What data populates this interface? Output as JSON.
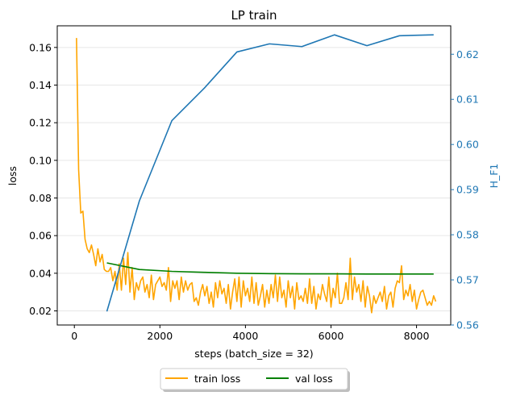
{
  "chart_data": {
    "type": "line",
    "title": "LP train",
    "xlabel": "steps (batch_size = 32)",
    "ylabel_left": "loss",
    "ylabel_right": "H_F1",
    "xlim": [
      -400,
      8800
    ],
    "ylim_left": [
      0.0125,
      0.1715
    ],
    "ylim_right": [
      0.56,
      0.6263
    ],
    "xticks": [
      0,
      2000,
      4000,
      6000,
      8000
    ],
    "yticks_left": [
      0.02,
      0.04,
      0.06,
      0.08,
      0.1,
      0.12,
      0.14,
      0.16
    ],
    "yticks_right": [
      0.56,
      0.57,
      0.58,
      0.59,
      0.6,
      0.61,
      0.62
    ],
    "grid": "horizontal light",
    "legend_placement": "below-center",
    "colors": {
      "train_loss": "#ffa500",
      "val_loss": "#008000",
      "h_f1": "#1f77b4",
      "right_axis": "#1f77b4"
    },
    "legend": [
      {
        "label": "train loss",
        "color": "#ffa500"
      },
      {
        "label": "val loss",
        "color": "#008000"
      }
    ],
    "series": [
      {
        "name": "train loss",
        "axis": "left",
        "color": "#ffa500",
        "x": [
          50,
          100,
          150,
          200,
          250,
          300,
          350,
          400,
          450,
          500,
          550,
          600,
          650,
          700,
          750,
          800,
          850,
          900,
          950,
          1000,
          1050,
          1100,
          1150,
          1200,
          1250,
          1300,
          1350,
          1400,
          1450,
          1500,
          1550,
          1600,
          1650,
          1700,
          1750,
          1800,
          1850,
          1900,
          1950,
          2000,
          2050,
          2100,
          2150,
          2200,
          2250,
          2300,
          2350,
          2400,
          2450,
          2500,
          2550,
          2600,
          2650,
          2700,
          2750,
          2800,
          2850,
          2900,
          2950,
          3000,
          3050,
          3100,
          3150,
          3200,
          3250,
          3300,
          3350,
          3400,
          3450,
          3500,
          3550,
          3600,
          3650,
          3700,
          3750,
          3800,
          3850,
          3900,
          3950,
          4000,
          4050,
          4100,
          4150,
          4200,
          4250,
          4300,
          4350,
          4400,
          4450,
          4500,
          4550,
          4600,
          4650,
          4700,
          4750,
          4800,
          4850,
          4900,
          4950,
          5000,
          5050,
          5100,
          5150,
          5200,
          5250,
          5300,
          5350,
          5400,
          5450,
          5500,
          5550,
          5600,
          5650,
          5700,
          5750,
          5800,
          5850,
          5900,
          5950,
          6000,
          6050,
          6100,
          6150,
          6200,
          6250,
          6300,
          6350,
          6400,
          6450,
          6500,
          6550,
          6600,
          6650,
          6700,
          6750,
          6800,
          6850,
          6900,
          6950,
          7000,
          7050,
          7100,
          7150,
          7200,
          7250,
          7300,
          7350,
          7400,
          7450,
          7500,
          7550,
          7600,
          7650,
          7700,
          7750,
          7800,
          7850,
          7900,
          7950,
          8000,
          8050,
          8100,
          8150,
          8200,
          8250,
          8300,
          8350,
          8400,
          8450
        ],
        "values": [
          0.165,
          0.095,
          0.072,
          0.073,
          0.058,
          0.053,
          0.051,
          0.055,
          0.05,
          0.044,
          0.053,
          0.046,
          0.05,
          0.042,
          0.041,
          0.041,
          0.043,
          0.036,
          0.041,
          0.031,
          0.045,
          0.031,
          0.048,
          0.034,
          0.051,
          0.03,
          0.043,
          0.026,
          0.035,
          0.031,
          0.036,
          0.038,
          0.03,
          0.034,
          0.027,
          0.039,
          0.026,
          0.034,
          0.036,
          0.038,
          0.033,
          0.035,
          0.031,
          0.043,
          0.025,
          0.036,
          0.032,
          0.036,
          0.026,
          0.038,
          0.03,
          0.036,
          0.031,
          0.034,
          0.035,
          0.025,
          0.027,
          0.023,
          0.03,
          0.034,
          0.028,
          0.033,
          0.024,
          0.03,
          0.022,
          0.035,
          0.027,
          0.036,
          0.029,
          0.032,
          0.024,
          0.034,
          0.021,
          0.03,
          0.037,
          0.025,
          0.038,
          0.022,
          0.036,
          0.028,
          0.032,
          0.025,
          0.038,
          0.024,
          0.035,
          0.023,
          0.028,
          0.034,
          0.022,
          0.031,
          0.024,
          0.034,
          0.027,
          0.039,
          0.025,
          0.038,
          0.027,
          0.031,
          0.022,
          0.036,
          0.027,
          0.033,
          0.021,
          0.035,
          0.026,
          0.028,
          0.025,
          0.032,
          0.024,
          0.037,
          0.024,
          0.033,
          0.021,
          0.029,
          0.026,
          0.034,
          0.029,
          0.025,
          0.038,
          0.022,
          0.032,
          0.027,
          0.04,
          0.024,
          0.024,
          0.027,
          0.035,
          0.026,
          0.048,
          0.026,
          0.038,
          0.03,
          0.034,
          0.025,
          0.036,
          0.022,
          0.033,
          0.028,
          0.019,
          0.028,
          0.024,
          0.027,
          0.03,
          0.025,
          0.033,
          0.021,
          0.028,
          0.03,
          0.022,
          0.032,
          0.036,
          0.035,
          0.044,
          0.026,
          0.031,
          0.028,
          0.034,
          0.025,
          0.031,
          0.021,
          0.026,
          0.03,
          0.031,
          0.027,
          0.023,
          0.025,
          0.023,
          0.028,
          0.025
        ]
      },
      {
        "name": "val loss",
        "axis": "left",
        "color": "#008000",
        "x": [
          760,
          1520,
          2280,
          3040,
          3800,
          4560,
          5320,
          6080,
          6840,
          7600,
          8400
        ],
        "values": [
          0.0455,
          0.042,
          0.041,
          0.0405,
          0.04,
          0.0398,
          0.0397,
          0.0397,
          0.0396,
          0.0396,
          0.0396
        ]
      },
      {
        "name": "H_F1",
        "axis": "right",
        "color": "#1f77b4",
        "x": [
          760,
          1520,
          2280,
          3040,
          3800,
          4560,
          5320,
          6080,
          6840,
          7600,
          8400
        ],
        "values": [
          0.563,
          0.5875,
          0.6053,
          0.6125,
          0.6205,
          0.6223,
          0.6217,
          0.6243,
          0.6219,
          0.6241,
          0.6243
        ]
      }
    ]
  }
}
